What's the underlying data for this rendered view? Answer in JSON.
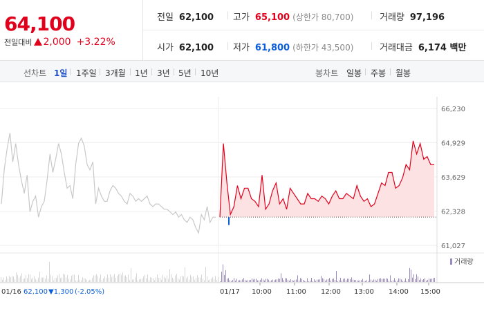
{
  "summary": {
    "price": "64,100",
    "change_label": "전일대비",
    "change_value": "2,000",
    "change_percent": "+3.22%",
    "direction": "up",
    "row1": [
      {
        "key": "전일",
        "value": "62,100"
      },
      {
        "key": "고가",
        "value": "65,100",
        "sub": "(상한가 80,700)"
      },
      {
        "key": "거래량",
        "value": "97,196"
      }
    ],
    "row2": [
      {
        "key": "시가",
        "value": "62,100"
      },
      {
        "key": "저가",
        "value": "61,800",
        "sub": "(하한가 43,500)"
      },
      {
        "key": "거래대금",
        "value": "6,174 백만"
      }
    ]
  },
  "toolbar": {
    "line_chart_label": "선차트",
    "periods": [
      "1일",
      "1주일",
      "3개월",
      "1년",
      "3년",
      "5년",
      "10년"
    ],
    "active_period": "1일",
    "candle_chart_label": "봉차트",
    "candle_periods": [
      "일봉",
      "주봉",
      "월봉"
    ]
  },
  "colors": {
    "up": "#e0001b",
    "down": "#0b5ed7",
    "prev_day_line": "#c8c8c8",
    "fill": "#fde2e4",
    "volume": "#9b8ac4"
  },
  "chart_data": {
    "type": "line",
    "title": "",
    "ylim": [
      61027,
      66230
    ],
    "y_ticks": [
      "66,230",
      "64,929",
      "63,629",
      "62,328",
      "61,027"
    ],
    "y_tick_values": [
      66230,
      64929,
      63629,
      62328,
      61027
    ],
    "baseline": 62100,
    "prev_day_label": "01/16",
    "prev_day_close": "62,100",
    "prev_day_change": "▼1,300",
    "prev_day_change_pct": "(-2.05%)",
    "today_label": "01/17",
    "x_ticks": [
      "10:00",
      "11:00",
      "12:00",
      "13:00",
      "14:00",
      "15:00"
    ],
    "volume_legend": "거래량",
    "series": [
      {
        "values_prev_day": [
          62600,
          63900,
          64700,
          65300,
          64200,
          64900,
          64100,
          63500,
          63000,
          63700,
          62300,
          62700,
          62900,
          62100,
          62500,
          62700,
          63500,
          64500,
          63800,
          64300,
          64900,
          64500,
          63800,
          63200,
          63300,
          62800,
          64100,
          64900,
          65100,
          64800,
          64100,
          63900,
          64200,
          62600,
          63200,
          62900,
          62700,
          62700,
          63100,
          63300,
          63200,
          63000,
          62900,
          62700,
          62600,
          63000,
          62900,
          62700,
          62800,
          62700,
          62800,
          62900,
          62600,
          62500,
          62600,
          62600,
          62500,
          62400,
          62400,
          62300,
          62200,
          62300,
          62100,
          62200,
          62000,
          61900,
          62100,
          62000,
          61700,
          61500,
          62200,
          62000,
          62500,
          61900,
          62100,
          62100
        ]
      },
      {
        "values_today": [
          62100,
          64900,
          63400,
          62200,
          62500,
          63300,
          62800,
          63200,
          63200,
          62800,
          62700,
          62500,
          63700,
          62400,
          62600,
          63100,
          63400,
          62600,
          62800,
          62400,
          63200,
          63000,
          62800,
          62600,
          62600,
          63000,
          62800,
          62800,
          62700,
          62900,
          62800,
          62600,
          62900,
          63100,
          62800,
          62800,
          63000,
          62900,
          62800,
          63300,
          62900,
          62700,
          62800,
          62500,
          62600,
          63000,
          63400,
          63300,
          63800,
          63800,
          63200,
          63300,
          63600,
          64100,
          63900,
          65000,
          64500,
          64900,
          64300,
          64400,
          64100,
          64100
        ]
      }
    ]
  }
}
